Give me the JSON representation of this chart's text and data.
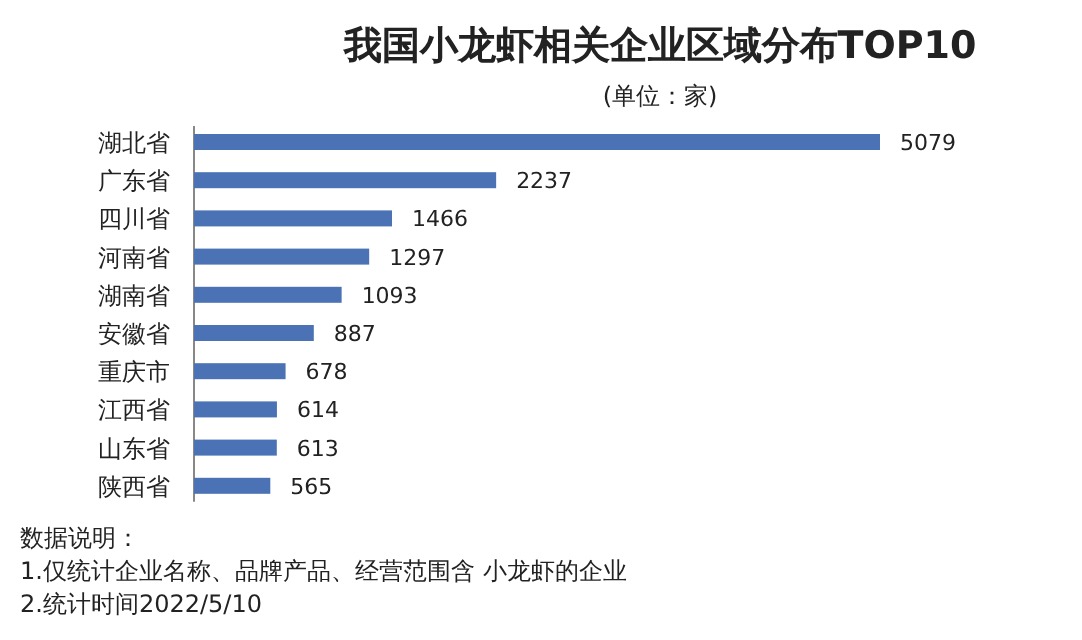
{
  "chart_data": {
    "type": "bar",
    "orientation": "horizontal",
    "title": "我国小龙虾相关企业区域分布TOP10",
    "subtitle": "(单位：家)",
    "categories": [
      "湖北省",
      "广东省",
      "四川省",
      "河南省",
      "湖南省",
      "安徽省",
      "重庆市",
      "江西省",
      "山东省",
      "陕西省"
    ],
    "values": [
      5079,
      2237,
      1466,
      1297,
      1093,
      887,
      678,
      614,
      613,
      565
    ],
    "color": "#4a72b5",
    "data_labels": true,
    "annotations": [
      "数据说明：",
      "1.仅统计企业名称、品牌产品、经营范围含 小龙虾的企业",
      "2.统计时间2022/5/10"
    ]
  }
}
